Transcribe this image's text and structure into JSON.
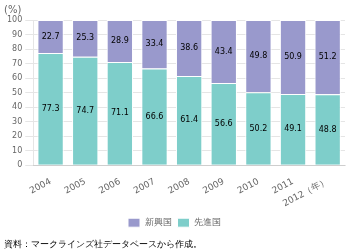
{
  "chart_data": {
    "type": "bar",
    "title": "(%)",
    "annotations": [
      "資料：マークラインズ社データベースから作成。"
    ],
    "categories": [
      "2004",
      "2005",
      "2006",
      "2007",
      "2008",
      "2009",
      "2010",
      "2011",
      "2012（年）"
    ],
    "series": [
      {
        "name": "先進国",
        "color": "#7ececa",
        "values": [
          77.3,
          74.7,
          71.1,
          66.6,
          61.4,
          56.6,
          50.2,
          49.1,
          48.8
        ]
      },
      {
        "name": "新興国",
        "color": "#9999cc",
        "values": [
          22.7,
          25.3,
          28.9,
          33.4,
          38.6,
          43.4,
          49.8,
          50.9,
          51.2
        ]
      }
    ],
    "stacked": true,
    "data_labels": true,
    "ylim": [
      0,
      100
    ],
    "yticks": [
      0,
      10,
      20,
      30,
      40,
      50,
      60,
      70,
      80,
      90,
      100
    ],
    "grid": true,
    "legend": "bottom"
  }
}
